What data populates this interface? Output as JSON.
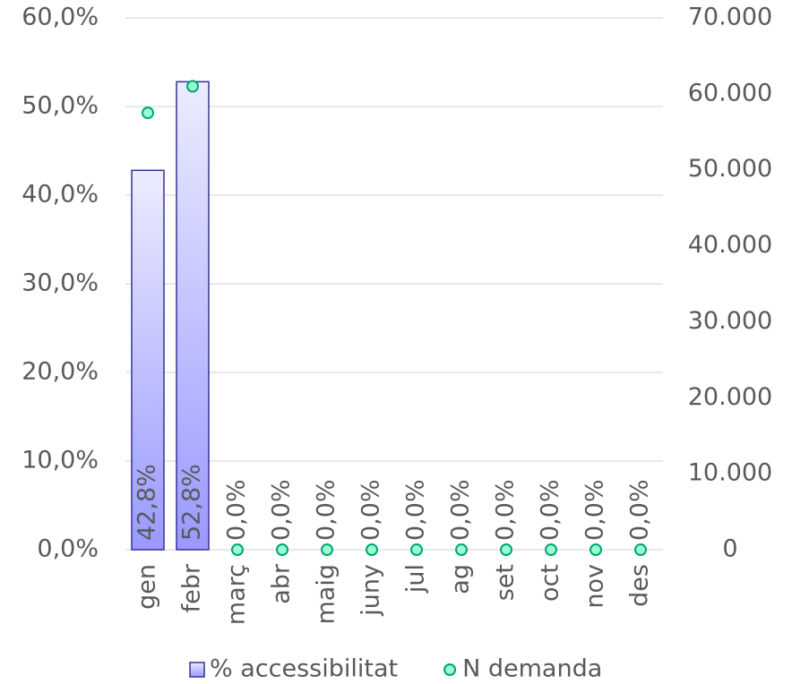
{
  "chart_data": {
    "type": "bar",
    "categories": [
      "gen",
      "febr",
      "març",
      "abr",
      "maig",
      "juny",
      "jul",
      "ag",
      "set",
      "oct",
      "nov",
      "des"
    ],
    "series": [
      {
        "name": "% accessibilitat",
        "type": "bar",
        "color": "#9999ff",
        "edge_color": "#333399",
        "values": [
          42.8,
          52.8,
          0,
          0,
          0,
          0,
          0,
          0,
          0,
          0,
          0,
          0
        ],
        "value_labels": [
          "42,8%",
          "52,8%",
          "0,0%",
          "0,0%",
          "0,0%",
          "0,0%",
          "0,0%",
          "0,0%",
          "0,0%",
          "0,0%",
          "0,0%",
          "0,0%"
        ]
      },
      {
        "name": "N demanda",
        "type": "marker",
        "axis": "y2",
        "color": "#99ffcc",
        "edge_color": "#00a37a",
        "values": [
          57500,
          61000,
          0,
          0,
          0,
          0,
          0,
          0,
          0,
          0,
          0,
          0
        ]
      }
    ],
    "ylim": [
      0,
      60
    ],
    "yticks": [
      {
        "value": 0,
        "label": "0,0%"
      },
      {
        "value": 10,
        "label": "10,0%"
      },
      {
        "value": 20,
        "label": "20,0%"
      },
      {
        "value": 30,
        "label": "30,0%"
      },
      {
        "value": 40,
        "label": "40,0%"
      },
      {
        "value": 50,
        "label": "50,0%"
      },
      {
        "value": 60,
        "label": "60,0%"
      }
    ],
    "y2lim": [
      0,
      70000
    ],
    "y2ticks": [
      0,
      {
        "value": 10000,
        "label": "10.000"
      },
      {
        "value": 20000,
        "label": "20.000"
      },
      {
        "value": 30000,
        "label": "30.000"
      },
      {
        "value": 40000,
        "label": "40.000"
      },
      {
        "value": 50000,
        "label": "50.000"
      },
      {
        "value": 60000,
        "label": "60.000"
      },
      {
        "value": 70000,
        "label": "70.000"
      }
    ],
    "grid": true,
    "legend": "bottom"
  }
}
